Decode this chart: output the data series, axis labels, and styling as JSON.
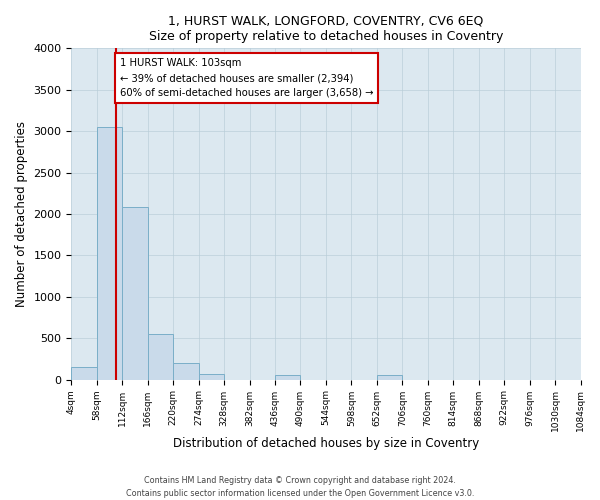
{
  "title": "1, HURST WALK, LONGFORD, COVENTRY, CV6 6EQ",
  "subtitle": "Size of property relative to detached houses in Coventry",
  "xlabel": "Distribution of detached houses by size in Coventry",
  "ylabel": "Number of detached properties",
  "bin_edges": [
    0,
    1,
    2,
    3,
    4,
    5,
    6,
    7,
    8,
    9,
    10,
    11,
    12,
    13,
    14,
    15,
    16,
    17,
    18,
    19,
    20
  ],
  "bar_heights": [
    150,
    3050,
    2080,
    555,
    205,
    70,
    0,
    0,
    60,
    0,
    0,
    0,
    55,
    0,
    0,
    0,
    0,
    0,
    0,
    0
  ],
  "bar_color": "#c9daea",
  "bar_edge_color": "#7aaec8",
  "property_line_x": 1.745,
  "property_line_color": "#cc0000",
  "annotation_text": "1 HURST WALK: 103sqm\n← 39% of detached houses are smaller (2,394)\n60% of semi-detached houses are larger (3,658) →",
  "annotation_box_facecolor": "#ffffff",
  "annotation_box_edgecolor": "#cc0000",
  "ylim": [
    0,
    4000
  ],
  "background_color": "#dce8f0",
  "footer_line1": "Contains HM Land Registry data © Crown copyright and database right 2024.",
  "footer_line2": "Contains public sector information licensed under the Open Government Licence v3.0.",
  "tick_labels": [
    "4sqm",
    "58sqm",
    "112sqm",
    "166sqm",
    "220sqm",
    "274sqm",
    "328sqm",
    "382sqm",
    "436sqm",
    "490sqm",
    "544sqm",
    "598sqm",
    "652sqm",
    "706sqm",
    "760sqm",
    "814sqm",
    "868sqm",
    "922sqm",
    "976sqm",
    "1030sqm",
    "1084sqm"
  ],
  "yticks": [
    0,
    500,
    1000,
    1500,
    2000,
    2500,
    3000,
    3500,
    4000
  ]
}
